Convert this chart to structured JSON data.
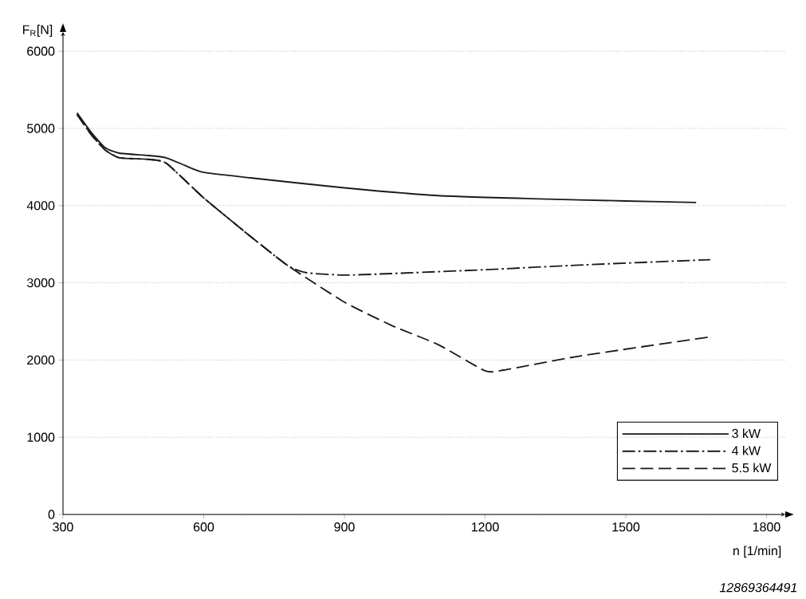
{
  "chart_data": {
    "type": "line",
    "xlabel": "n [1/min]",
    "ylabel": "F$_{R}$[N]",
    "annotations": [
      "12869364491"
    ],
    "xlim": [
      300,
      1840
    ],
    "ylim": [
      0,
      6250
    ],
    "xticks": [
      300,
      600,
      900,
      1200,
      1500,
      1800
    ],
    "yticks": [
      0,
      1000,
      2000,
      3000,
      4000,
      5000,
      6000
    ],
    "grid": "y",
    "legend": "bottom right",
    "series": [
      {
        "name": "3 kW",
        "color": "#1a1a1a",
        "line_style": "solid",
        "x": [
          330,
          360,
          390,
          420,
          480,
          520,
          560,
          600,
          700,
          900,
          1100,
          1300,
          1500,
          1650
        ],
        "values": [
          5200,
          4950,
          4750,
          4680,
          4650,
          4620,
          4520,
          4430,
          4360,
          4230,
          4130,
          4090,
          4060,
          4040
        ]
      },
      {
        "name": "4 kW",
        "color": "#1a1a1a",
        "line_style": "dashdot",
        "x": [
          330,
          360,
          390,
          420,
          480,
          520,
          600,
          700,
          780,
          820,
          900,
          1000,
          1200,
          1400,
          1680
        ],
        "values": [
          5180,
          4920,
          4720,
          4620,
          4600,
          4550,
          4100,
          3600,
          3220,
          3130,
          3100,
          3120,
          3170,
          3230,
          3300
        ]
      },
      {
        "name": "5.5 kW",
        "color": "#1a1a1a",
        "line_style": "dashed",
        "x": [
          330,
          360,
          390,
          420,
          480,
          520,
          600,
          700,
          780,
          900,
          1000,
          1100,
          1200,
          1240,
          1400,
          1680
        ],
        "values": [
          5180,
          4920,
          4720,
          4620,
          4600,
          4550,
          4100,
          3600,
          3220,
          2750,
          2450,
          2200,
          1860,
          1870,
          2050,
          2300
        ]
      }
    ]
  }
}
